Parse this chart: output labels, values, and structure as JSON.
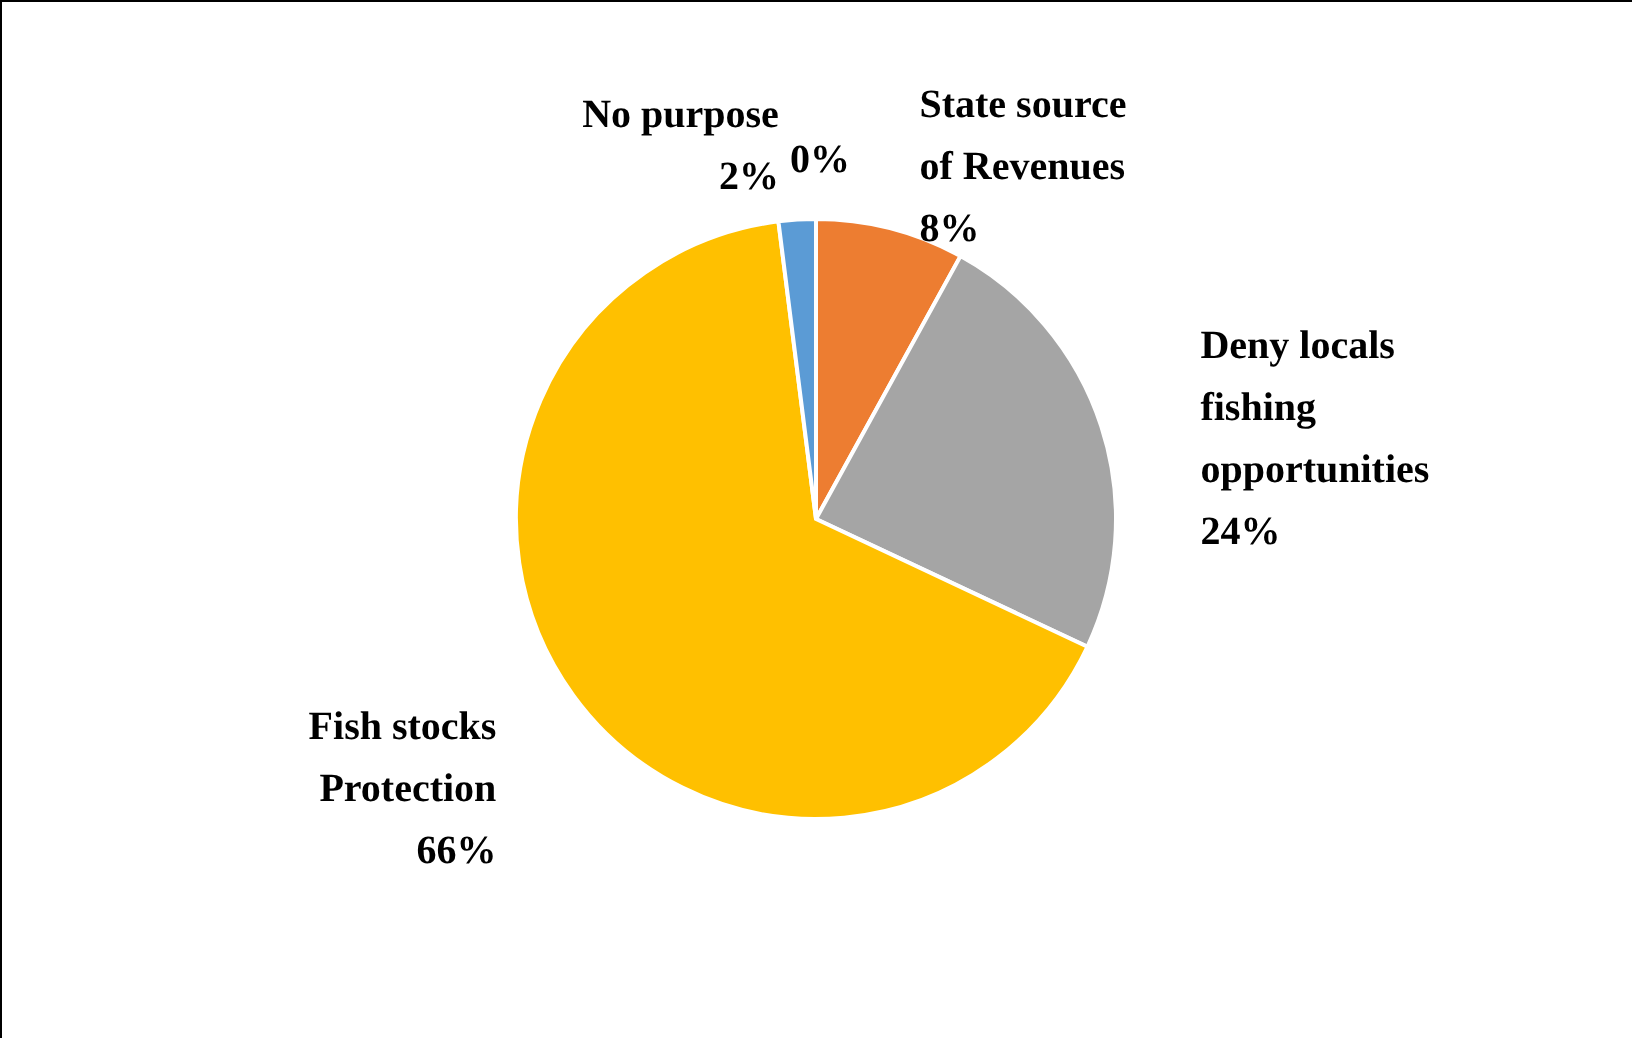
{
  "chart_data": {
    "type": "pie",
    "categories": [
      "State source of Revenues",
      "Deny locals fishing opportunities",
      "Fish stocks Protection",
      "No purpose",
      null
    ],
    "values": [
      8,
      24,
      66,
      2,
      0
    ],
    "value_labels": [
      "8%",
      "24%",
      "66%",
      "2%",
      "0%"
    ],
    "colors": [
      "#ed7d31",
      "#a5a5a5",
      "#ffc000",
      "#5b9bd5",
      "#4472c4"
    ]
  }
}
